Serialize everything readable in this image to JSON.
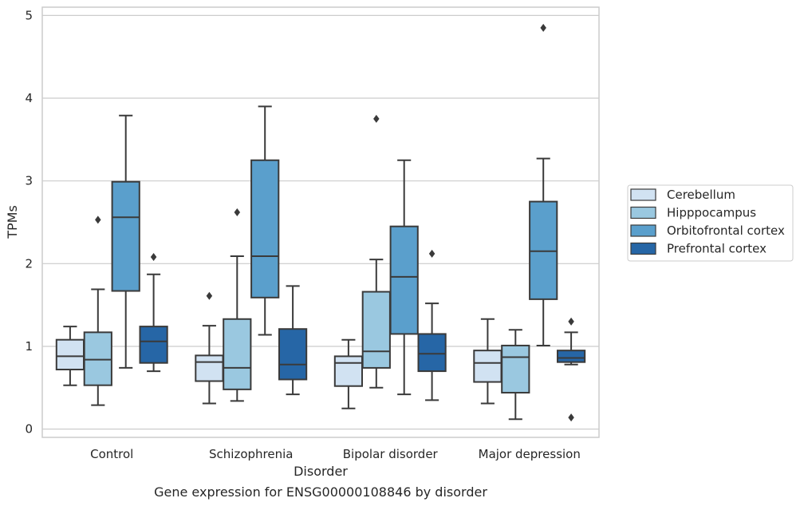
{
  "chart_data": {
    "type": "box",
    "title": "",
    "caption": "Gene expression for ENSG00000108846 by disorder",
    "xlabel": "Disorder",
    "ylabel": "TPMs",
    "ylim": [
      -0.1,
      5.1
    ],
    "yticks": [
      "0",
      "1",
      "2",
      "3",
      "4",
      "5"
    ],
    "grid": "horizontal",
    "legend_position": "right",
    "categories": [
      "Control",
      "Schizophrenia",
      "Bipolar disorder",
      "Major depression"
    ],
    "series": [
      {
        "name": "Cerebellum",
        "color": "#d1e2f2",
        "boxes": [
          {
            "whisker_low": 0.53,
            "q1": 0.72,
            "median": 0.88,
            "q3": 1.08,
            "whisker_high": 1.24,
            "outliers": []
          },
          {
            "whisker_low": 0.31,
            "q1": 0.58,
            "median": 0.81,
            "q3": 0.89,
            "whisker_high": 1.25,
            "outliers": [
              1.61
            ]
          },
          {
            "whisker_low": 0.25,
            "q1": 0.52,
            "median": 0.8,
            "q3": 0.88,
            "whisker_high": 1.08,
            "outliers": []
          },
          {
            "whisker_low": 0.31,
            "q1": 0.57,
            "median": 0.8,
            "q3": 0.95,
            "whisker_high": 1.33,
            "outliers": []
          }
        ]
      },
      {
        "name": "Hipppocampus",
        "color": "#9ac8e0",
        "boxes": [
          {
            "whisker_low": 0.29,
            "q1": 0.53,
            "median": 0.84,
            "q3": 1.17,
            "whisker_high": 1.69,
            "outliers": [
              2.53
            ]
          },
          {
            "whisker_low": 0.34,
            "q1": 0.48,
            "median": 0.74,
            "q3": 1.33,
            "whisker_high": 2.09,
            "outliers": [
              2.62
            ]
          },
          {
            "whisker_low": 0.5,
            "q1": 0.74,
            "median": 0.94,
            "q3": 1.66,
            "whisker_high": 2.05,
            "outliers": [
              3.75
            ]
          },
          {
            "whisker_low": 0.12,
            "q1": 0.44,
            "median": 0.87,
            "q3": 1.01,
            "whisker_high": 1.2,
            "outliers": []
          }
        ]
      },
      {
        "name": "Orbitofrontal cortex",
        "color": "#5a9fcc",
        "boxes": [
          {
            "whisker_low": 0.74,
            "q1": 1.67,
            "median": 2.56,
            "q3": 2.99,
            "whisker_high": 3.79,
            "outliers": []
          },
          {
            "whisker_low": 1.14,
            "q1": 1.59,
            "median": 2.09,
            "q3": 3.25,
            "whisker_high": 3.9,
            "outliers": []
          },
          {
            "whisker_low": 0.42,
            "q1": 1.15,
            "median": 1.84,
            "q3": 2.45,
            "whisker_high": 3.25,
            "outliers": []
          },
          {
            "whisker_low": 1.01,
            "q1": 1.57,
            "median": 2.15,
            "q3": 2.75,
            "whisker_high": 3.27,
            "outliers": [
              4.85
            ]
          }
        ]
      },
      {
        "name": "Prefrontal cortex",
        "color": "#2666a6",
        "boxes": [
          {
            "whisker_low": 0.7,
            "q1": 0.8,
            "median": 1.06,
            "q3": 1.24,
            "whisker_high": 1.87,
            "outliers": [
              2.08
            ]
          },
          {
            "whisker_low": 0.42,
            "q1": 0.6,
            "median": 0.78,
            "q3": 1.21,
            "whisker_high": 1.73,
            "outliers": []
          },
          {
            "whisker_low": 0.35,
            "q1": 0.7,
            "median": 0.91,
            "q3": 1.15,
            "whisker_high": 1.52,
            "outliers": [
              2.12
            ]
          },
          {
            "whisker_low": 0.78,
            "q1": 0.81,
            "median": 0.86,
            "q3": 0.95,
            "whisker_high": 1.17,
            "outliers": [
              1.3,
              0.14
            ]
          }
        ]
      }
    ]
  }
}
